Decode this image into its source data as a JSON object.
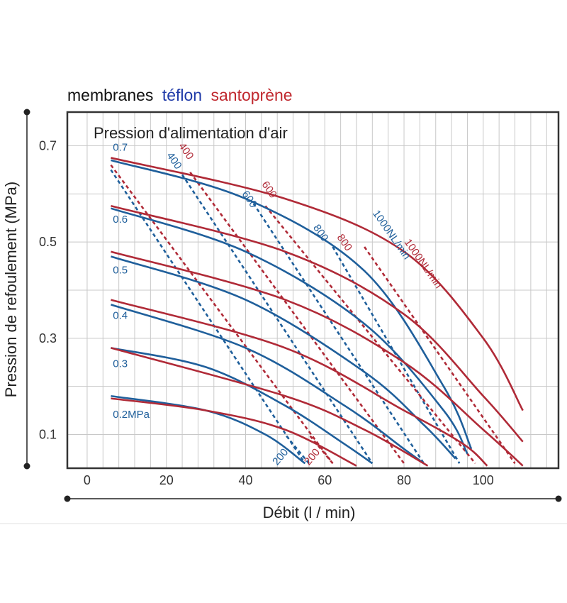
{
  "header": {
    "prefix": "membranes",
    "teflon": "téflon",
    "santoprene": "santoprène"
  },
  "colors": {
    "teflon": "#1f5f9b",
    "santoprene": "#b02a37",
    "teflon_header": "#1f3aa8",
    "santoprene_header": "#c0282e"
  },
  "chart_data": {
    "type": "line",
    "title": "Pression d'alimentation d'air",
    "xlabel": "Débit (l / min)",
    "ylabel": "Pression de refoulement (MPa)",
    "xlim": [
      -5,
      119
    ],
    "ylim": [
      0.03,
      0.77
    ],
    "x_ticks": [
      {
        "v": 0,
        "t": "0"
      },
      {
        "v": 20,
        "t": "20"
      },
      {
        "v": 40,
        "t": "40"
      },
      {
        "v": 60,
        "t": "60"
      },
      {
        "v": 80,
        "t": "80"
      },
      {
        "v": 100,
        "t": "100"
      }
    ],
    "y_ticks": [
      {
        "v": 0.1,
        "t": "0.1"
      },
      {
        "v": 0.3,
        "t": "0.3"
      },
      {
        "v": 0.5,
        "t": "0.5"
      },
      {
        "v": 0.7,
        "t": "0.7"
      }
    ],
    "x_grid_step": 4,
    "grid": true,
    "supply_pressure_labels": [
      {
        "text": "0.7",
        "x": 6.5,
        "y": 0.69
      },
      {
        "text": "0.6",
        "x": 6.5,
        "y": 0.54
      },
      {
        "text": "0.5",
        "x": 6.5,
        "y": 0.435
      },
      {
        "text": "0.4",
        "x": 6.5,
        "y": 0.34
      },
      {
        "text": "0.3",
        "x": 6.5,
        "y": 0.24
      },
      {
        "text": "0.2MPa",
        "x": 6.5,
        "y": 0.135
      }
    ],
    "pressure_curves": [
      {
        "material": "teflon",
        "supply": "0.7",
        "points": [
          [
            6,
            0.67
          ],
          [
            40,
            0.59
          ],
          [
            70,
            0.44
          ],
          [
            90,
            0.2
          ],
          [
            97,
            0.07
          ]
        ]
      },
      {
        "material": "teflon",
        "supply": "0.6",
        "points": [
          [
            6,
            0.57
          ],
          [
            40,
            0.48
          ],
          [
            70,
            0.33
          ],
          [
            90,
            0.15
          ],
          [
            96,
            0.06
          ]
        ]
      },
      {
        "material": "teflon",
        "supply": "0.5",
        "points": [
          [
            6,
            0.47
          ],
          [
            40,
            0.38
          ],
          [
            70,
            0.23
          ],
          [
            85,
            0.12
          ],
          [
            93,
            0.05
          ]
        ]
      },
      {
        "material": "teflon",
        "supply": "0.4",
        "points": [
          [
            6,
            0.37
          ],
          [
            40,
            0.28
          ],
          [
            65,
            0.16
          ],
          [
            80,
            0.07
          ],
          [
            85,
            0.04
          ]
        ]
      },
      {
        "material": "teflon",
        "supply": "0.3",
        "points": [
          [
            6,
            0.28
          ],
          [
            30,
            0.24
          ],
          [
            50,
            0.16
          ],
          [
            65,
            0.08
          ],
          [
            72,
            0.04
          ]
        ]
      },
      {
        "material": "teflon",
        "supply": "0.2",
        "points": [
          [
            6,
            0.18
          ],
          [
            30,
            0.15
          ],
          [
            45,
            0.1
          ],
          [
            55,
            0.04
          ]
        ]
      },
      {
        "material": "santoprene",
        "supply": "0.7",
        "points": [
          [
            6,
            0.675
          ],
          [
            50,
            0.59
          ],
          [
            80,
            0.48
          ],
          [
            100,
            0.3
          ],
          [
            110,
            0.15
          ]
        ]
      },
      {
        "material": "santoprene",
        "supply": "0.6",
        "points": [
          [
            6,
            0.575
          ],
          [
            50,
            0.48
          ],
          [
            80,
            0.35
          ],
          [
            100,
            0.18
          ],
          [
            110,
            0.085
          ]
        ]
      },
      {
        "material": "santoprene",
        "supply": "0.5",
        "points": [
          [
            6,
            0.48
          ],
          [
            50,
            0.38
          ],
          [
            80,
            0.25
          ],
          [
            100,
            0.11
          ],
          [
            110,
            0.035
          ]
        ]
      },
      {
        "material": "santoprene",
        "supply": "0.4",
        "points": [
          [
            6,
            0.38
          ],
          [
            50,
            0.28
          ],
          [
            80,
            0.15
          ],
          [
            95,
            0.08
          ],
          [
            101,
            0.035
          ]
        ]
      },
      {
        "material": "santoprene",
        "supply": "0.3",
        "points": [
          [
            6,
            0.28
          ],
          [
            50,
            0.18
          ],
          [
            70,
            0.11
          ],
          [
            86,
            0.035
          ]
        ]
      },
      {
        "material": "santoprene",
        "supply": "0.2",
        "points": [
          [
            6,
            0.175
          ],
          [
            30,
            0.15
          ],
          [
            50,
            0.11
          ],
          [
            68,
            0.035
          ]
        ]
      }
    ],
    "flow_lines": [
      {
        "material": "teflon",
        "label": "200",
        "points": [
          [
            56,
            0.04
          ],
          [
            50,
            0.1
          ]
        ],
        "label_at": [
          48,
          0.035
        ],
        "rotate": -50
      },
      {
        "material": "teflon",
        "label": "400",
        "points": [
          [
            6,
            0.65
          ],
          [
            55,
            0.04
          ]
        ],
        "label_at": [
          20,
          0.68
        ],
        "rotate": 55
      },
      {
        "material": "teflon",
        "label": "600",
        "points": [
          [
            24,
            0.64
          ],
          [
            72,
            0.04
          ]
        ],
        "label_at": [
          39,
          0.6
        ],
        "rotate": 55
      },
      {
        "material": "teflon",
        "label": "800",
        "points": [
          [
            42,
            0.58
          ],
          [
            85,
            0.04
          ]
        ],
        "label_at": [
          57,
          0.53
        ],
        "rotate": 55
      },
      {
        "material": "teflon",
        "label": "1000NL/min",
        "points": [
          [
            62,
            0.49
          ],
          [
            94,
            0.04
          ]
        ],
        "label_at": [
          72,
          0.56
        ],
        "rotate": 55
      },
      {
        "material": "santoprene",
        "label": "200",
        "points": [
          [
            62,
            0.04
          ],
          [
            56,
            0.1
          ]
        ],
        "label_at": [
          56,
          0.035
        ],
        "rotate": -50
      },
      {
        "material": "santoprene",
        "label": "400",
        "points": [
          [
            6,
            0.66
          ],
          [
            62,
            0.04
          ]
        ],
        "label_at": [
          23,
          0.7
        ],
        "rotate": 55
      },
      {
        "material": "santoprene",
        "label": "600",
        "points": [
          [
            26,
            0.645
          ],
          [
            80,
            0.04
          ]
        ],
        "label_at": [
          44,
          0.62
        ],
        "rotate": 55
      },
      {
        "material": "santoprene",
        "label": "800",
        "points": [
          [
            45,
            0.575
          ],
          [
            98,
            0.04
          ]
        ],
        "label_at": [
          63,
          0.51
        ],
        "rotate": 55
      },
      {
        "material": "santoprene",
        "label": "1000NL/min",
        "points": [
          [
            70,
            0.49
          ],
          [
            108,
            0.04
          ]
        ],
        "label_at": [
          80,
          0.5
        ],
        "rotate": 55
      }
    ]
  }
}
